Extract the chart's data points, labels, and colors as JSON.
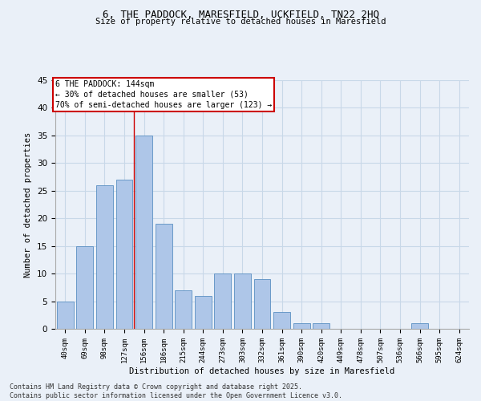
{
  "title1": "6, THE PADDOCK, MARESFIELD, UCKFIELD, TN22 2HQ",
  "title2": "Size of property relative to detached houses in Maresfield",
  "xlabel": "Distribution of detached houses by size in Maresfield",
  "ylabel": "Number of detached properties",
  "categories": [
    "40sqm",
    "69sqm",
    "98sqm",
    "127sqm",
    "156sqm",
    "186sqm",
    "215sqm",
    "244sqm",
    "273sqm",
    "303sqm",
    "332sqm",
    "361sqm",
    "390sqm",
    "420sqm",
    "449sqm",
    "478sqm",
    "507sqm",
    "536sqm",
    "566sqm",
    "595sqm",
    "624sqm"
  ],
  "values": [
    5,
    15,
    26,
    27,
    35,
    19,
    7,
    6,
    10,
    10,
    9,
    3,
    1,
    1,
    0,
    0,
    0,
    0,
    1,
    0,
    0
  ],
  "bar_color": "#aec6e8",
  "bar_edge_color": "#5a8fc2",
  "grid_color": "#c8d8e8",
  "background_color": "#eaf0f8",
  "annotation_box_text": "6 THE PADDOCK: 144sqm\n← 30% of detached houses are smaller (53)\n70% of semi-detached houses are larger (123) →",
  "annotation_box_color": "#ffffff",
  "annotation_box_edge_color": "#cc0000",
  "redline_x": 3.5,
  "ylim": [
    0,
    45
  ],
  "yticks": [
    0,
    5,
    10,
    15,
    20,
    25,
    30,
    35,
    40,
    45
  ],
  "footer1": "Contains HM Land Registry data © Crown copyright and database right 2025.",
  "footer2": "Contains public sector information licensed under the Open Government Licence v3.0."
}
